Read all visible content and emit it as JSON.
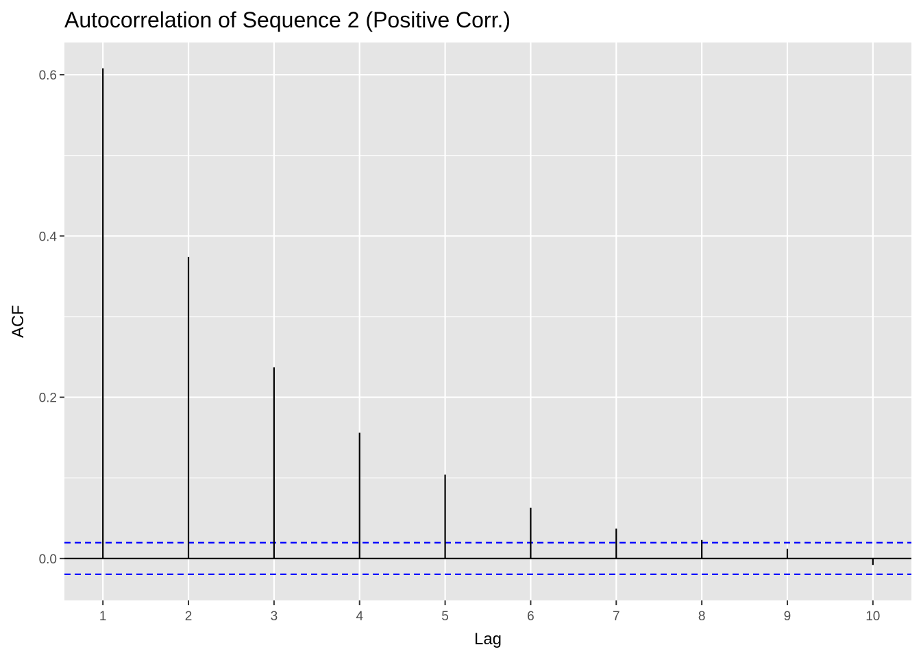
{
  "chart_data": {
    "type": "bar",
    "subtype": "acf-stem",
    "title": "Autocorrelation of Sequence 2 (Positive Corr.)",
    "xlabel": "Lag",
    "ylabel": "ACF",
    "x": [
      1,
      2,
      3,
      4,
      5,
      6,
      7,
      8,
      9,
      10
    ],
    "values": [
      0.608,
      0.374,
      0.237,
      0.156,
      0.104,
      0.063,
      0.037,
      0.023,
      0.012,
      -0.008
    ],
    "xlim": [
      0.55,
      10.45
    ],
    "ylim": [
      -0.052,
      0.64
    ],
    "x_ticks": [
      "1",
      "2",
      "3",
      "4",
      "5",
      "6",
      "7",
      "8",
      "9",
      "10"
    ],
    "y_ticks": [
      "0.0",
      "0.2",
      "0.4",
      "0.6"
    ],
    "y_tick_values": [
      0.0,
      0.2,
      0.4,
      0.6
    ],
    "confidence_bounds": [
      0.0196,
      -0.0196
    ],
    "colors": {
      "panel_background": "#e5e5e5",
      "grid": "#ffffff",
      "stems": "#000000",
      "zero_line": "#000000",
      "confidence_lines": "#0000ff"
    },
    "grid": true,
    "legend": "none"
  }
}
